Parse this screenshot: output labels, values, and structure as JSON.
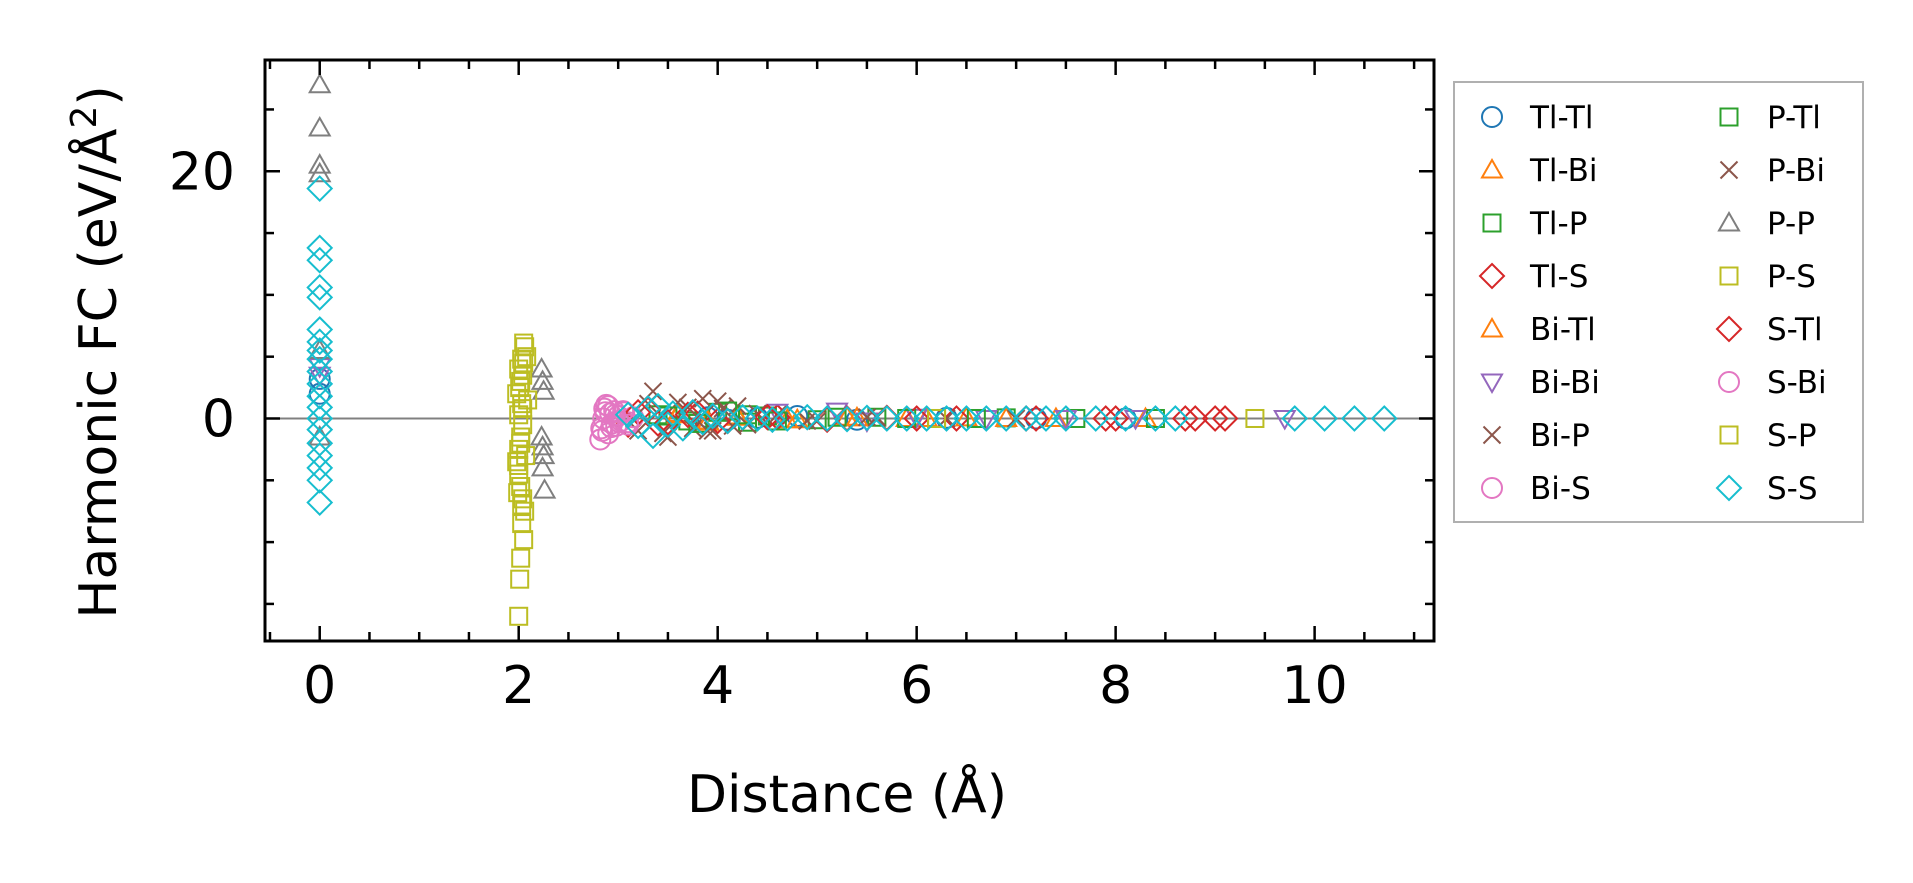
{
  "chart_data": {
    "type": "scatter",
    "title": "",
    "xlabel": "Distance (Å)",
    "ylabel_prefix": "Harmonic FC (eV/Å",
    "ylabel_sup": "2",
    "ylabel_suffix": ")",
    "xlim": [
      -0.55,
      11.2
    ],
    "ylim": [
      -18,
      29
    ],
    "x_ticks": [
      0,
      2,
      4,
      6,
      8,
      10
    ],
    "x_tick_labels": [
      "0",
      "2",
      "4",
      "6",
      "8",
      "10"
    ],
    "y_ticks": [
      0,
      20
    ],
    "y_tick_labels": [
      "0",
      "20"
    ],
    "x_minor_step": 0.5,
    "y_minor_step": 5,
    "zero_line": true,
    "legend_position": "outside-right",
    "legend_columns": 2,
    "series": [
      {
        "name": "Tl-Tl",
        "marker": "circle",
        "color": "#1f77b4",
        "points": [
          [
            0,
            2.0
          ],
          [
            0,
            3.2
          ],
          [
            3.9,
            0.1
          ],
          [
            4.1,
            -0.1
          ],
          [
            4.4,
            0.05
          ],
          [
            4.8,
            0.2
          ],
          [
            5.4,
            -0.1
          ],
          [
            6.3,
            0.05
          ],
          [
            7.2,
            0.0
          ],
          [
            8.1,
            0.0
          ]
        ]
      },
      {
        "name": "Tl-Bi",
        "marker": "triangle-up",
        "color": "#ff7f0e",
        "points": [
          [
            3.6,
            0.4
          ],
          [
            3.9,
            -0.3
          ],
          [
            4.2,
            0.2
          ],
          [
            4.7,
            -0.1
          ],
          [
            5.3,
            0.1
          ],
          [
            5.9,
            0.0
          ],
          [
            6.5,
            0.05
          ],
          [
            7.4,
            0.0
          ],
          [
            8.3,
            0.0
          ]
        ]
      },
      {
        "name": "Tl-P",
        "marker": "square",
        "color": "#2ca02c",
        "points": [
          [
            3.4,
            0.3
          ],
          [
            3.7,
            -0.2
          ],
          [
            4.0,
            0.5
          ],
          [
            4.3,
            -0.3
          ],
          [
            4.5,
            0.2
          ],
          [
            5.0,
            -0.1
          ],
          [
            5.6,
            0.1
          ],
          [
            6.2,
            0.0
          ],
          [
            6.9,
            0.05
          ],
          [
            7.6,
            0.0
          ],
          [
            8.4,
            0.0
          ]
        ]
      },
      {
        "name": "Tl-S",
        "marker": "diamond",
        "color": "#d62728",
        "points": [
          [
            3.1,
            -0.5
          ],
          [
            3.3,
            0.7
          ],
          [
            3.5,
            -0.3
          ],
          [
            3.8,
            0.4
          ],
          [
            4.1,
            -0.2
          ],
          [
            4.6,
            0.1
          ],
          [
            5.1,
            -0.1
          ],
          [
            5.7,
            0.05
          ],
          [
            6.4,
            0.0
          ],
          [
            7.1,
            0.0
          ],
          [
            7.9,
            0.0
          ],
          [
            8.7,
            0.0
          ],
          [
            9.1,
            0.0
          ]
        ]
      },
      {
        "name": "Bi-Tl",
        "marker": "triangle-up",
        "color": "#ff7f0e",
        "points": [
          [
            3.6,
            0.3
          ],
          [
            3.9,
            -0.2
          ],
          [
            4.2,
            0.1
          ],
          [
            4.8,
            -0.1
          ],
          [
            5.4,
            0.05
          ],
          [
            6.1,
            0.0
          ],
          [
            6.9,
            0.0
          ]
        ]
      },
      {
        "name": "Bi-Bi",
        "marker": "triangle-down",
        "color": "#9467bd",
        "points": [
          [
            0,
            3.5
          ],
          [
            0,
            4.2
          ],
          [
            4.6,
            0.5
          ],
          [
            5.2,
            0.6
          ],
          [
            5.5,
            -0.2
          ],
          [
            6.0,
            0.1
          ],
          [
            6.7,
            0.0
          ],
          [
            7.5,
            0.0
          ],
          [
            8.2,
            0.0
          ],
          [
            9.7,
            0.0
          ]
        ]
      },
      {
        "name": "Bi-P",
        "marker": "x",
        "color": "#8c564b",
        "points": [
          [
            3.2,
            -1.0
          ],
          [
            3.35,
            2.2
          ],
          [
            3.5,
            -1.5
          ],
          [
            3.6,
            1.3
          ],
          [
            3.75,
            -0.8
          ],
          [
            3.85,
            1.6
          ],
          [
            3.95,
            -1.0
          ],
          [
            4.05,
            0.8
          ],
          [
            4.2,
            1.0
          ],
          [
            4.3,
            -0.5
          ],
          [
            4.6,
            0.3
          ],
          [
            5.0,
            -0.2
          ],
          [
            5.6,
            0.1
          ],
          [
            6.3,
            0.0
          ],
          [
            7.0,
            0.0
          ]
        ]
      },
      {
        "name": "Bi-S",
        "marker": "circle",
        "color": "#e377c2",
        "points": [
          [
            2.82,
            -1.7
          ],
          [
            2.83,
            -0.8
          ],
          [
            2.85,
            0.0
          ],
          [
            2.86,
            0.8
          ],
          [
            2.88,
            1.1
          ],
          [
            2.9,
            -1.2
          ],
          [
            2.92,
            0.4
          ],
          [
            2.94,
            -0.4
          ],
          [
            2.96,
            0.6
          ],
          [
            2.98,
            -0.6
          ],
          [
            3.0,
            0.2
          ],
          [
            3.03,
            -0.2
          ],
          [
            3.06,
            0.5
          ],
          [
            3.1,
            -0.3
          ],
          [
            3.15,
            0.1
          ]
        ]
      },
      {
        "name": "P-Tl",
        "marker": "square",
        "color": "#2ca02c",
        "points": [
          [
            3.5,
            0.2
          ],
          [
            3.8,
            -0.4
          ],
          [
            4.1,
            0.6
          ],
          [
            4.3,
            0.3
          ],
          [
            4.6,
            -0.2
          ],
          [
            5.2,
            0.1
          ],
          [
            5.9,
            0.0
          ],
          [
            6.6,
            0.0
          ]
        ]
      },
      {
        "name": "P-Bi",
        "marker": "x",
        "color": "#8c564b",
        "points": [
          [
            3.3,
            1.2
          ],
          [
            3.45,
            -1.2
          ],
          [
            3.7,
            0.9
          ],
          [
            3.9,
            -1.0
          ],
          [
            4.0,
            1.4
          ],
          [
            4.15,
            -0.6
          ],
          [
            4.4,
            0.4
          ],
          [
            4.9,
            -0.2
          ],
          [
            5.5,
            0.1
          ]
        ]
      },
      {
        "name": "P-P",
        "marker": "triangle-up",
        "color": "#7f7f7f",
        "points": [
          [
            0,
            27
          ],
          [
            0,
            23.5
          ],
          [
            0,
            20.5
          ],
          [
            0,
            19.8
          ],
          [
            0,
            5.5
          ],
          [
            0,
            -1.5
          ],
          [
            2.23,
            4.0
          ],
          [
            2.24,
            3.0
          ],
          [
            2.25,
            2.2
          ],
          [
            2.23,
            -1.5
          ],
          [
            2.24,
            -2.3
          ],
          [
            2.25,
            -3.0
          ],
          [
            2.24,
            -4.0
          ],
          [
            2.26,
            -5.8
          ]
        ]
      },
      {
        "name": "P-S",
        "marker": "square",
        "color": "#bcbd22",
        "points": [
          [
            2.0,
            -16.0
          ],
          [
            2.02,
            -11.3
          ],
          [
            2.05,
            -9.8
          ],
          [
            2.03,
            -8.5
          ],
          [
            2.06,
            -7.5
          ],
          [
            2.04,
            -6.5
          ],
          [
            2.02,
            -5.5
          ],
          [
            2.0,
            -4.5
          ],
          [
            1.98,
            -3.5
          ],
          [
            2.0,
            -2.5
          ],
          [
            2.02,
            -1.5
          ],
          [
            2.04,
            -0.5
          ],
          [
            2.0,
            0.3
          ],
          [
            2.03,
            1.2
          ],
          [
            1.98,
            2.0
          ],
          [
            2.02,
            3.0
          ],
          [
            2.0,
            4.0
          ],
          [
            2.05,
            4.5
          ],
          [
            2.08,
            5.0
          ],
          [
            2.06,
            5.8
          ],
          [
            2.04,
            3.5
          ],
          [
            1.99,
            -6.0
          ],
          [
            2.07,
            -3.0
          ],
          [
            2.09,
            1.5
          ]
        ]
      },
      {
        "name": "S-Tl",
        "marker": "diamond",
        "color": "#d62728",
        "points": [
          [
            3.2,
            0.5
          ],
          [
            3.4,
            -0.4
          ],
          [
            3.7,
            0.3
          ],
          [
            4.0,
            -0.2
          ],
          [
            4.5,
            0.1
          ],
          [
            5.3,
            0.0
          ],
          [
            6.0,
            0.0
          ],
          [
            7.2,
            0.0
          ],
          [
            8.0,
            0.0
          ],
          [
            8.8,
            0.0
          ],
          [
            9.0,
            0.0
          ]
        ]
      },
      {
        "name": "S-Bi",
        "marker": "circle",
        "color": "#e377c2",
        "points": [
          [
            2.84,
            -1.0
          ],
          [
            2.87,
            0.5
          ],
          [
            2.9,
            1.0
          ],
          [
            2.93,
            -0.7
          ],
          [
            2.97,
            0.3
          ],
          [
            3.01,
            -0.3
          ],
          [
            3.05,
            0.6
          ],
          [
            3.1,
            -0.5
          ]
        ]
      },
      {
        "name": "S-P",
        "marker": "square",
        "color": "#bcbd22",
        "points": [
          [
            2.01,
            -13.0
          ],
          [
            2.03,
            -7.0
          ],
          [
            2.0,
            -3.8
          ],
          [
            2.02,
            -2.0
          ],
          [
            2.04,
            0.8
          ],
          [
            2.01,
            2.5
          ],
          [
            2.03,
            4.8
          ],
          [
            2.05,
            6.1
          ],
          [
            6.2,
            0.0
          ],
          [
            9.4,
            0.0
          ]
        ]
      },
      {
        "name": "S-S",
        "marker": "diamond",
        "color": "#17becf",
        "points": [
          [
            0,
            18.6
          ],
          [
            0,
            13.8
          ],
          [
            0,
            12.8
          ],
          [
            0,
            10.6
          ],
          [
            0,
            9.8
          ],
          [
            0,
            7.2
          ],
          [
            0,
            6.2
          ],
          [
            0,
            5.5
          ],
          [
            0,
            4.8
          ],
          [
            0,
            3.8
          ],
          [
            0,
            2.8
          ],
          [
            0,
            1.8
          ],
          [
            0,
            0.9
          ],
          [
            0,
            0.0
          ],
          [
            0,
            -0.9
          ],
          [
            0,
            -2.0
          ],
          [
            0,
            -3.0
          ],
          [
            0,
            -4.0
          ],
          [
            0,
            -5.0
          ],
          [
            0,
            -6.8
          ],
          [
            3.1,
            0.3
          ],
          [
            3.2,
            -0.6
          ],
          [
            3.3,
            0.8
          ],
          [
            3.35,
            -1.4
          ],
          [
            3.4,
            1.0
          ],
          [
            3.5,
            -0.5
          ],
          [
            3.55,
            0.4
          ],
          [
            3.65,
            -0.8
          ],
          [
            3.75,
            0.5
          ],
          [
            3.85,
            -0.3
          ],
          [
            3.95,
            0.2
          ],
          [
            4.1,
            -0.2
          ],
          [
            4.25,
            0.1
          ],
          [
            4.4,
            0.0
          ],
          [
            4.55,
            -0.1
          ],
          [
            4.7,
            0.0
          ],
          [
            4.9,
            0.1
          ],
          [
            5.1,
            0.0
          ],
          [
            5.3,
            -0.05
          ],
          [
            5.5,
            0.05
          ],
          [
            5.7,
            0.0
          ],
          [
            5.9,
            0.0
          ],
          [
            6.1,
            0.0
          ],
          [
            6.3,
            0.0
          ],
          [
            6.5,
            0.0
          ],
          [
            6.7,
            0.0
          ],
          [
            6.9,
            0.0
          ],
          [
            7.1,
            0.0
          ],
          [
            7.3,
            0.0
          ],
          [
            7.5,
            0.0
          ],
          [
            7.8,
            0.0
          ],
          [
            8.1,
            0.0
          ],
          [
            8.4,
            0.0
          ],
          [
            8.6,
            0.0
          ],
          [
            9.8,
            0.0
          ],
          [
            10.1,
            0.0
          ],
          [
            10.4,
            0.0
          ],
          [
            10.7,
            0.0
          ]
        ]
      }
    ]
  }
}
